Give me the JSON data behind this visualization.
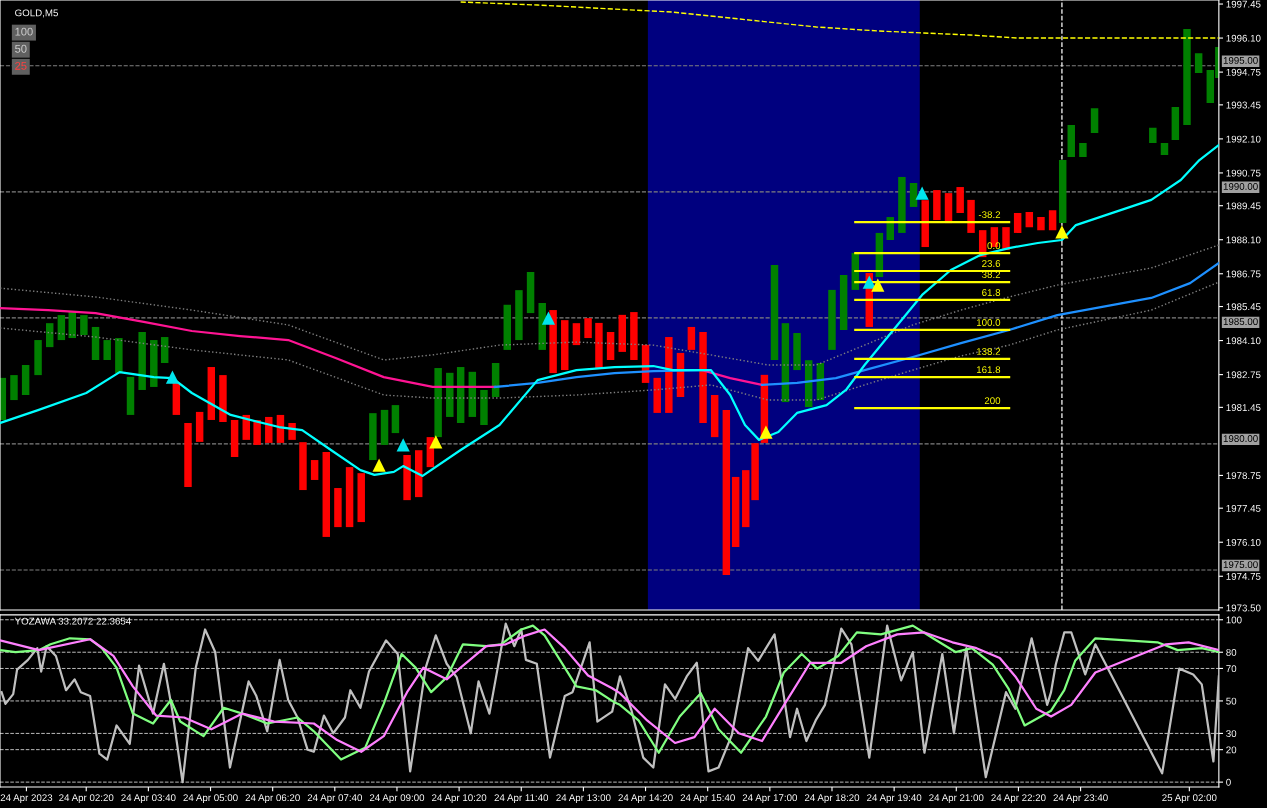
{
  "chart_data": [
    {
      "type": "bar",
      "title": "GOLD,M5",
      "annotations": [
        "100",
        "50",
        "25",
        {
          "text": "-38.2",
          "x": "2023-04-24T21:57",
          "y": 1988.8
        },
        {
          "text": "0.0",
          "x": "2023-04-24T21:57",
          "y": 1987.57
        },
        {
          "text": "23.6",
          "x": "2023-04-24T21:57",
          "y": 1986.86
        },
        {
          "text": "38.2",
          "x": "2023-04-24T21:57",
          "y": 1986.42
        },
        {
          "text": "61.8",
          "x": "2023-04-24T21:57",
          "y": 1985.71
        },
        {
          "text": "100.0",
          "x": "2023-04-24T21:57",
          "y": 1984.52
        },
        {
          "text": "138.2",
          "x": "2023-04-24T21:57",
          "y": 1983.37
        },
        {
          "text": "161.8",
          "x": "2023-04-24T21:57",
          "y": 1982.65
        },
        {
          "text": "200",
          "x": "2023-04-24T21:57",
          "y": 1981.42
        }
      ],
      "xlim": [
        "2023-04-24T00:29",
        "2023-04-25T02:38"
      ],
      "ylim": [
        1973.41,
        1997.61
      ],
      "yticks": [
        {
          "value": 1997.45,
          "label": "1997.45"
        },
        {
          "value": 1996.1,
          "label": "1996.10"
        },
        {
          "value": 1994.75,
          "label": "1994.75"
        },
        {
          "value": 1993.45,
          "label": "1993.45"
        },
        {
          "value": 1992.1,
          "label": "1992.10"
        },
        {
          "value": 1990.75,
          "label": "1990.75"
        },
        {
          "value": 1989.45,
          "label": "1989.45"
        },
        {
          "value": 1988.1,
          "label": "1988.10"
        },
        {
          "value": 1986.75,
          "label": "1986.75"
        },
        {
          "value": 1985.45,
          "label": "1985.45"
        },
        {
          "value": 1984.1,
          "label": "1984.10"
        },
        {
          "value": 1982.75,
          "label": "1982.75"
        },
        {
          "value": 1981.45,
          "label": "1981.45"
        },
        {
          "value": 1978.75,
          "label": "1978.75"
        },
        {
          "value": 1977.45,
          "label": "1977.45"
        },
        {
          "value": 1976.1,
          "label": "1976.10"
        },
        {
          "value": 1974.75,
          "label": "1974.75"
        },
        {
          "value": 1973.5,
          "label": "1973.50"
        }
      ],
      "tick_labels": "y",
      "ref_lines": [
        {
          "axis": "y",
          "value": 1995,
          "label": "1995.00",
          "color": "#808080",
          "line_style": "dashed"
        },
        {
          "axis": "y",
          "value": 1990,
          "label": "1990.00",
          "color": "#808080",
          "line_style": "dashed"
        },
        {
          "axis": "y",
          "value": 1985,
          "label": "1985.00",
          "color": "#808080",
          "line_style": "dashed"
        },
        {
          "axis": "y",
          "value": 1980,
          "label": "1980.00",
          "color": "#808080",
          "line_style": "dashed"
        },
        {
          "axis": "y",
          "value": 1975,
          "label": "1975.00",
          "color": "#808080",
          "line_style": "dashed"
        },
        {
          "axis": "x",
          "value": "2023-04-24T23:16",
          "color": "#ffffff",
          "line_style": "dashed"
        }
      ],
      "bands": [
        {
          "axis": "x",
          "from": "2023-04-24T14:23",
          "to": "2023-04-24T20:13",
          "color": "#00007f"
        }
      ],
      "series": [
        {
          "type": "bar",
          "x": [
            "2023-04-24T00:32",
            "2023-04-24T00:47",
            "2023-04-24T01:02",
            "2023-04-24T01:18",
            "2023-04-24T01:33",
            "2023-04-24T01:48",
            "2023-04-24T02:02",
            "2023-04-24T02:17",
            "2023-04-24T02:32",
            "2023-04-24T02:47",
            "2023-04-24T03:02",
            "2023-04-24T03:17",
            "2023-04-24T03:32",
            "2023-04-24T03:47",
            "2023-04-24T04:01",
            "2023-04-24T04:16",
            "2023-04-24T04:31",
            "2023-04-24T04:46",
            "2023-04-24T05:01",
            "2023-04-24T05:16",
            "2023-04-24T05:31",
            "2023-04-24T05:46",
            "2023-04-24T06:00",
            "2023-04-24T06:15",
            "2023-04-24T06:30",
            "2023-04-24T06:45",
            "2023-04-24T06:59",
            "2023-04-24T07:14",
            "2023-04-24T07:29",
            "2023-04-24T07:44",
            "2023-04-24T07:59",
            "2023-04-24T08:14",
            "2023-04-24T08:29",
            "2023-04-24T08:44",
            "2023-04-24T08:58",
            "2023-04-24T09:13",
            "2023-04-24T09:28",
            "2023-04-24T09:43",
            "2023-04-24T09:53",
            "2023-04-24T10:08",
            "2023-04-24T10:22",
            "2023-04-24T10:37",
            "2023-04-24T10:52",
            "2023-04-24T11:07",
            "2023-04-24T11:22",
            "2023-04-24T11:37",
            "2023-04-24T11:52",
            "2023-04-24T12:07",
            "2023-04-24T12:21",
            "2023-04-24T12:36",
            "2023-04-24T12:51",
            "2023-04-24T13:06",
            "2023-04-24T13:20",
            "2023-04-24T13:35",
            "2023-04-24T13:50",
            "2023-04-24T14:05",
            "2023-04-24T14:20",
            "2023-04-24T14:35",
            "2023-04-24T14:50",
            "2023-04-24T15:05",
            "2023-04-24T15:19",
            "2023-04-24T15:34",
            "2023-04-24T15:49",
            "2023-04-24T16:04",
            "2023-04-24T16:16",
            "2023-04-24T16:29",
            "2023-04-24T16:41",
            "2023-04-24T16:53",
            "2023-04-24T17:06",
            "2023-04-24T17:20",
            "2023-04-24T17:35",
            "2023-04-24T17:50",
            "2023-04-24T18:05",
            "2023-04-24T18:20",
            "2023-04-24T18:35",
            "2023-04-24T18:50",
            "2023-04-24T19:08",
            "2023-04-24T19:21",
            "2023-04-24T19:35",
            "2023-04-24T19:50",
            "2023-04-24T20:05",
            "2023-04-24T20:20",
            "2023-04-24T20:35",
            "2023-04-24T20:50",
            "2023-04-24T21:05",
            "2023-04-24T21:19",
            "2023-04-24T21:34",
            "2023-04-24T21:49",
            "2023-04-24T22:04",
            "2023-04-24T22:19",
            "2023-04-24T22:34",
            "2023-04-24T22:49",
            "2023-04-24T23:04",
            "2023-04-24T23:17",
            "2023-04-24T23:28",
            "2023-04-24T23:43",
            "2023-04-24T23:58",
            "2023-04-25T01:13",
            "2023-04-25T01:28",
            "2023-04-25T01:42",
            "2023-04-25T01:57",
            "2023-04-25T02:12",
            "2023-04-25T02:27",
            "2023-04-25T02:38"
          ],
          "base": [
            1980.95,
            1981.74,
            1981.94,
            1982.73,
            1983.84,
            1984.12,
            1984.2,
            1984.32,
            1983.33,
            1983.33,
            1982.81,
            1981.15,
            1982.14,
            1982.26,
            1983.21,
            1981.15,
            1978.29,
            1980.08,
            1980.95,
            1980.87,
            1979.48,
            1980.16,
            1979.96,
            1980.04,
            1980.04,
            1980.16,
            1978.17,
            1978.57,
            1976.31,
            1976.7,
            1976.7,
            1976.9,
            1979.36,
            1979.96,
            1980.43,
            1977.77,
            1977.89,
            1979.08,
            1980.27,
            1981.07,
            1980.83,
            1981.07,
            1980.75,
            1981.86,
            1983.73,
            1984.12,
            1985.19,
            1983.73,
            1982.81,
            1982.93,
            1983.92,
            1984.2,
            1983.01,
            1983.33,
            1983.65,
            1983.33,
            1982.42,
            1981.23,
            1981.23,
            1981.86,
            1983.73,
            1980.83,
            1980.27,
            1974.8,
            1975.91,
            1976.7,
            1977.77,
            1980.04,
            1983.33,
            1981.66,
            1982.93,
            1981.46,
            1981.74,
            1983.73,
            1984.52,
            1986.11,
            1984.64,
            1986.62,
            1988.09,
            1988.37,
            1989.4,
            1987.81,
            1988.88,
            1988.76,
            1989.16,
            1988.37,
            1987.41,
            1987.81,
            1987.69,
            1988.37,
            1988.6,
            1988.48,
            1988.48,
            1988.76,
            1991.38,
            1991.38,
            1992.33,
            1991.94,
            1991.46,
            1992.06,
            1992.65,
            1994.71,
            1993.52,
            1994.52
          ],
          "values": [
            1.67,
            0.99,
            1.19,
            1.39,
            0.95,
            0.99,
            1.03,
            0.79,
            1.31,
            0.79,
            1.39,
            1.51,
            2.3,
            1.86,
            1.03,
            1.27,
            2.54,
            1.19,
            2.1,
            1.86,
            1.47,
            0.99,
            0.99,
            1.03,
            1.11,
            0.67,
            1.9,
            0.79,
            3.37,
            1.55,
            2.38,
            1.94,
            1.86,
            1.39,
            1.11,
            1.79,
            1.86,
            1.19,
            2.74,
            1.75,
            2.22,
            1.79,
            1.39,
            1.35,
            1.79,
            1.98,
            1.63,
            1.86,
            2.5,
            1.98,
            0.87,
            0.79,
            1.79,
            1.11,
            1.47,
            1.9,
            1.51,
            1.39,
            3.01,
            1.75,
            0.91,
            3.61,
            1.67,
            6.55,
            2.78,
            2.26,
            2.26,
            2.7,
            3.77,
            3.13,
            1.47,
            1.86,
            1.47,
            2.38,
            2.18,
            1.47,
            2.14,
            1.75,
            0.91,
            2.22,
            0.95,
            1.86,
            1.19,
            1.19,
            1.03,
            1.31,
            1.07,
            0.79,
            0.91,
            0.79,
            0.6,
            0.52,
            0.79,
            2.5,
            1.27,
            0.56,
            0.99,
            0.6,
            0.48,
            1.31,
            3.81,
            0.79,
            1.31,
            1.23
          ],
          "colors": [
            "#008000",
            "#008000",
            "#008000",
            "#008000",
            "#008000",
            "#008000",
            "#008000",
            "#008000",
            "#008000",
            "#008000",
            "#008000",
            "#008000",
            "#008000",
            "#008000",
            "#008000",
            "#ff0000",
            "#ff0000",
            "#ff0000",
            "#ff0000",
            "#ff0000",
            "#ff0000",
            "#ff0000",
            "#ff0000",
            "#ff0000",
            "#ff0000",
            "#ff0000",
            "#ff0000",
            "#ff0000",
            "#ff0000",
            "#ff0000",
            "#ff0000",
            "#ff0000",
            "#008000",
            "#008000",
            "#008000",
            "#ff0000",
            "#ff0000",
            "#ff0000",
            "#008000",
            "#008000",
            "#008000",
            "#008000",
            "#008000",
            "#008000",
            "#008000",
            "#008000",
            "#008000",
            "#008000",
            "#ff0000",
            "#ff0000",
            "#ff0000",
            "#ff0000",
            "#ff0000",
            "#ff0000",
            "#ff0000",
            "#ff0000",
            "#ff0000",
            "#ff0000",
            "#ff0000",
            "#ff0000",
            "#ff0000",
            "#ff0000",
            "#ff0000",
            "#ff0000",
            "#ff0000",
            "#ff0000",
            "#ff0000",
            "#ff0000",
            "#008000",
            "#008000",
            "#008000",
            "#008000",
            "#008000",
            "#008000",
            "#008000",
            "#008000",
            "#ff0000",
            "#008000",
            "#008000",
            "#008000",
            "#008000",
            "#ff0000",
            "#ff0000",
            "#ff0000",
            "#ff0000",
            "#ff0000",
            "#ff0000",
            "#ff0000",
            "#ff0000",
            "#ff0000",
            "#ff0000",
            "#ff0000",
            "#ff0000",
            "#008000",
            "#008000",
            "#008000",
            "#008000",
            "#008000",
            "#008000",
            "#008000",
            "#008000",
            "#008000",
            "#008000",
            "#008000"
          ]
        },
        {
          "type": "line",
          "color": "#808080",
          "line_style": "dotted",
          "x": [
            "2023-04-24T00:29",
            "2023-04-24T02:32",
            "2023-04-24T04:36",
            "2023-04-24T06:40",
            "2023-04-24T08:43",
            "2023-04-24T09:46",
            "2023-04-24T11:12",
            "2023-04-24T12:51",
            "2023-04-24T14:30",
            "2023-04-24T15:44",
            "2023-04-24T16:58",
            "2023-04-24T18:00",
            "2023-04-24T19:02",
            "2023-04-24T20:04",
            "2023-04-24T21:06",
            "2023-04-24T22:08",
            "2023-04-24T23:10",
            "2023-04-25T01:11",
            "2023-04-25T02:38"
          ],
          "values": [
            1986.18,
            1985.83,
            1985.31,
            1984.72,
            1983.33,
            1983.53,
            1983.92,
            1984.04,
            1983.92,
            1983.53,
            1983.13,
            1983.13,
            1983.92,
            1984.72,
            1985.31,
            1985.83,
            1986.3,
            1986.98,
            1987.89
          ]
        },
        {
          "type": "line",
          "color": "#808080",
          "line_style": "dotted",
          "x": [
            "2023-04-24T00:29",
            "2023-04-24T02:32",
            "2023-04-24T04:36",
            "2023-04-24T06:40",
            "2023-04-24T08:43",
            "2023-04-24T09:46",
            "2023-04-24T11:12",
            "2023-04-24T12:51",
            "2023-04-24T14:30",
            "2023-04-24T15:44",
            "2023-04-24T16:58",
            "2023-04-24T18:00",
            "2023-04-24T19:02",
            "2023-04-24T20:04",
            "2023-04-24T21:06",
            "2023-04-24T22:08",
            "2023-04-24T23:10",
            "2023-04-25T01:11",
            "2023-04-25T02:38"
          ],
          "values": [
            1984.6,
            1984.24,
            1983.73,
            1983.33,
            1981.94,
            1981.82,
            1981.82,
            1981.94,
            1982.14,
            1982.34,
            1981.74,
            1981.74,
            1982.34,
            1982.93,
            1983.49,
            1983.92,
            1984.52,
            1985.31,
            1986.42
          ]
        },
        {
          "type": "line",
          "color": "#ffff00",
          "line_style": "dashed",
          "x": [
            "2023-04-24T10:22",
            "2023-04-24T12:01",
            "2023-04-24T14:55",
            "2023-04-24T18:00",
            "2023-04-24T19:20",
            "2023-04-24T21:18",
            "2023-04-24T22:20",
            "2023-04-25T02:38"
          ],
          "values": [
            1997.53,
            1997.41,
            1997.13,
            1996.54,
            1996.38,
            1996.22,
            1996.1,
            1996.1
          ]
        },
        {
          "type": "line",
          "color": "#ff1493",
          "x": [
            "2023-04-24T00:29",
            "2023-04-24T01:31",
            "2023-04-24T02:32",
            "2023-04-24T03:34",
            "2023-04-24T04:36",
            "2023-04-24T05:38",
            "2023-04-24T06:40",
            "2023-04-24T07:41",
            "2023-04-24T08:43",
            "2023-04-24T09:46",
            "2023-04-24T11:06",
            "2023-04-24T13:00",
            "2023-04-24T15:32",
            "2023-04-24T16:09",
            "2023-04-24T16:50"
          ],
          "values": [
            1985.39,
            1985.31,
            1985.19,
            1984.84,
            1984.48,
            1984.28,
            1984.12,
            1983.41,
            1982.65,
            1982.26,
            1982.26,
            null,
            1982.93,
            1982.61,
            1982.34
          ]
        },
        {
          "type": "line",
          "color": "#1e90ff",
          "x": [
            "2023-04-24T11:06",
            "2023-04-24T12:01",
            "2023-04-24T12:51",
            "2023-04-24T13:40",
            "2023-04-24T14:30",
            "2023-04-24T15:32",
            "2023-04-24T16:09",
            "2023-04-24T16:50",
            "2023-04-24T17:35",
            "2023-04-24T18:25",
            "2023-04-24T19:02",
            "2023-04-24T20:04",
            "2023-04-24T21:06",
            "2023-04-24T22:08",
            "2023-04-24T23:10",
            "2023-04-25T01:11",
            "2023-04-25T02:01",
            "2023-04-25T02:38"
          ],
          "values": [
            1982.26,
            1982.42,
            1982.65,
            1982.81,
            1982.89,
            1982.93,
            null,
            1982.34,
            1982.42,
            1982.61,
            1982.93,
            1983.45,
            1984.0,
            1984.52,
            1985.11,
            1985.79,
            1986.38,
            1987.18
          ]
        },
        {
          "type": "line",
          "color": "#00ffff",
          "x": [
            "2023-04-24T00:29",
            "2023-04-24T01:18",
            "2023-04-24T02:20",
            "2023-04-24T03:03",
            "2023-04-24T03:47",
            "2023-04-24T04:11",
            "2023-04-24T04:36",
            "2023-04-24T05:26",
            "2023-04-24T06:28",
            "2023-04-24T06:58",
            "2023-04-24T07:35",
            "2023-04-24T08:13",
            "2023-04-24T08:31",
            "2023-04-24T08:56",
            "2023-04-24T09:08",
            "2023-04-24T09:33",
            "2023-04-24T10:22",
            "2023-04-24T11:12",
            "2023-04-24T12:01",
            "2023-04-24T12:51",
            "2023-04-24T13:40",
            "2023-04-24T14:30",
            "2023-04-24T14:55",
            "2023-04-24T15:44",
            "2023-04-24T16:09",
            "2023-04-24T16:28",
            "2023-04-24T16:46",
            "2023-04-24T17:11",
            "2023-04-24T17:35",
            "2023-04-24T18:13",
            "2023-04-24T18:38",
            "2023-04-24T19:02",
            "2023-04-24T19:39",
            "2023-04-24T20:16",
            "2023-04-24T20:53",
            "2023-04-24T21:31",
            "2023-04-24T22:08",
            "2023-04-24T22:45",
            "2023-04-24T23:16",
            "2023-04-24T23:34",
            "2023-04-25T01:11",
            "2023-04-25T01:49",
            "2023-04-25T02:13",
            "2023-04-25T02:38"
          ],
          "values": [
            1980.83,
            1981.34,
            1982.02,
            1982.85,
            1982.65,
            1982.61,
            1982.02,
            1981.15,
            1980.67,
            1980.55,
            1979.76,
            1978.96,
            1978.77,
            1978.89,
            1979.12,
            1978.73,
            1979.76,
            1980.75,
            1982.53,
            1982.93,
            1983.05,
            1983.09,
            1982.93,
            1982.93,
            1981.94,
            1980.75,
            1980.16,
            1980.47,
            1981.23,
            1981.54,
            1982.14,
            1983.13,
            1984.52,
            1985.91,
            1986.9,
            1987.49,
            1987.77,
            1987.97,
            1988.09,
            1988.68,
            1989.68,
            1990.47,
            1991.26,
            1991.86
          ]
        },
        {
          "type": "line",
          "color": "#ffff00",
          "x": [
            "2023-04-24T18:50",
            "2023-04-24T22:08"
          ],
          "values": [
            1988.8,
            1988.8
          ]
        },
        {
          "type": "line",
          "color": "#ffff00",
          "x": [
            "2023-04-24T18:50",
            "2023-04-24T22:08"
          ],
          "values": [
            1987.57,
            1987.57
          ]
        },
        {
          "type": "line",
          "color": "#ffff00",
          "x": [
            "2023-04-24T18:50",
            "2023-04-24T22:08"
          ],
          "values": [
            1986.86,
            1986.86
          ]
        },
        {
          "type": "line",
          "color": "#ffff00",
          "x": [
            "2023-04-24T18:50",
            "2023-04-24T22:08"
          ],
          "values": [
            1986.42,
            1986.42
          ]
        },
        {
          "type": "line",
          "color": "#ffff00",
          "x": [
            "2023-04-24T18:50",
            "2023-04-24T22:08"
          ],
          "values": [
            1985.71,
            1985.71
          ]
        },
        {
          "type": "line",
          "color": "#ffff00",
          "x": [
            "2023-04-24T18:50",
            "2023-04-24T22:08"
          ],
          "values": [
            1984.52,
            1984.52
          ]
        },
        {
          "type": "line",
          "color": "#ffff00",
          "x": [
            "2023-04-24T18:50",
            "2023-04-24T22:08"
          ],
          "values": [
            1983.37,
            1983.37
          ]
        },
        {
          "type": "line",
          "color": "#ffff00",
          "x": [
            "2023-04-24T18:50",
            "2023-04-24T22:08"
          ],
          "values": [
            1982.65,
            1982.65
          ]
        },
        {
          "type": "line",
          "color": "#ffff00",
          "x": [
            "2023-04-24T18:50",
            "2023-04-24T22:08"
          ],
          "values": [
            1981.42,
            1981.42
          ]
        },
        {
          "type": "scatter",
          "color": "#00e5ee",
          "marker": "triangle",
          "x": [
            "2023-04-24T04:11",
            "2023-04-24T09:08",
            "2023-04-24T12:15",
            "2023-04-24T19:08",
            "2023-04-24T20:16"
          ],
          "values": [
            1982.65,
            1979.96,
            1984.99,
            1986.42,
            1989.95
          ]
        },
        {
          "type": "scatter",
          "color": "#ffff00",
          "marker": "triangle",
          "x": [
            "2023-04-24T08:37",
            "2023-04-24T09:50",
            "2023-04-24T16:55",
            "2023-04-24T19:19",
            "2023-04-24T23:16"
          ],
          "values": [
            1979.16,
            1980.08,
            1980.47,
            1986.3,
            1988.41
          ]
        }
      ]
    },
    {
      "type": "line",
      "title": "YOZAWA 33.2072 22.3654",
      "xlim": [
        "2023-04-24T00:29",
        "2023-04-25T02:38"
      ],
      "ylim": [
        -3,
        103
      ],
      "xticks": [
        {
          "value": "2023-04-24T01:03",
          "label": "24 Apr 2023"
        },
        {
          "value": "2023-04-24T02:20",
          "label": "24 Apr 02:20"
        },
        {
          "value": "2023-04-24T03:40",
          "label": "24 Apr 03:40"
        },
        {
          "value": "2023-04-24T05:00",
          "label": "24 Apr 05:00"
        },
        {
          "value": "2023-04-24T06:20",
          "label": "24 Apr 06:20"
        },
        {
          "value": "2023-04-24T07:40",
          "label": "24 Apr 07:40"
        },
        {
          "value": "2023-04-24T09:00",
          "label": "24 Apr 09:00"
        },
        {
          "value": "2023-04-24T10:20",
          "label": "24 Apr 10:20"
        },
        {
          "value": "2023-04-24T11:40",
          "label": "24 Apr 11:40"
        },
        {
          "value": "2023-04-24T13:00",
          "label": "24 Apr 13:00"
        },
        {
          "value": "2023-04-24T14:20",
          "label": "24 Apr 14:20"
        },
        {
          "value": "2023-04-24T15:40",
          "label": "24 Apr 15:40"
        },
        {
          "value": "2023-04-24T17:00",
          "label": "24 Apr 17:00"
        },
        {
          "value": "2023-04-24T18:20",
          "label": "24 Apr 18:20"
        },
        {
          "value": "2023-04-24T19:40",
          "label": "24 Apr 19:40"
        },
        {
          "value": "2023-04-24T21:00",
          "label": "24 Apr 21:00"
        },
        {
          "value": "2023-04-24T22:20",
          "label": "24 Apr 22:20"
        },
        {
          "value": "2023-04-24T23:40",
          "label": "24 Apr 23:40"
        },
        {
          "value": "2023-04-25T02:00",
          "label": "25 Apr 02:00"
        }
      ],
      "yticks": [
        100,
        80,
        70,
        50,
        30,
        20,
        0
      ],
      "grid": "y",
      "series": [
        {
          "color": "#c0c0c0",
          "x": [
            "2023-04-24T00:31",
            "2023-04-24T00:36",
            "2023-04-24T00:46",
            "2023-04-24T00:51",
            "2023-04-24T01:05",
            "2023-04-24T01:17",
            "2023-04-24T01:22",
            "2023-04-24T01:29",
            "2023-04-24T01:41",
            "2023-04-24T01:54",
            "2023-04-24T02:05",
            "2023-04-24T02:13",
            "2023-04-24T02:25",
            "2023-04-24T02:37",
            "2023-04-24T02:47",
            "2023-04-24T02:59",
            "2023-04-24T03:16",
            "2023-04-24T03:28",
            "2023-04-24T03:46",
            "2023-04-24T04:00",
            "2023-04-24T04:11",
            "2023-04-24T04:24",
            "2023-04-24T04:41",
            "2023-04-24T04:53",
            "2023-04-24T05:06",
            "2023-04-24T05:25",
            "2023-04-24T05:49",
            "2023-04-24T05:59",
            "2023-04-24T06:13",
            "2023-04-24T06:29",
            "2023-04-24T06:40",
            "2023-04-24T06:52",
            "2023-04-24T07:05",
            "2023-04-24T07:13",
            "2023-04-24T07:26",
            "2023-04-24T07:38",
            "2023-04-24T07:53",
            "2023-04-24T08:00",
            "2023-04-24T08:13",
            "2023-04-24T08:24",
            "2023-04-24T08:46",
            "2023-04-24T09:01",
            "2023-04-24T09:17",
            "2023-04-24T09:37",
            "2023-04-24T09:50",
            "2023-04-24T10:04",
            "2023-04-24T10:17",
            "2023-04-24T10:35",
            "2023-04-24T10:45",
            "2023-04-24T10:59",
            "2023-04-24T11:20",
            "2023-04-24T11:31",
            "2023-04-24T11:40",
            "2023-04-24T11:46",
            "2023-04-24T12:00",
            "2023-04-24T12:17",
            "2023-04-24T12:36",
            "2023-04-24T12:46",
            "2023-04-24T13:08",
            "2023-04-24T13:18",
            "2023-04-24T13:37",
            "2023-04-24T13:47",
            "2023-04-24T14:02",
            "2023-04-24T14:17",
            "2023-04-24T14:30",
            "2023-04-24T14:45",
            "2023-04-24T14:58",
            "2023-04-24T15:13",
            "2023-04-24T15:26",
            "2023-04-24T15:41",
            "2023-04-24T15:54",
            "2023-04-24T16:11",
            "2023-04-24T16:32",
            "2023-04-24T16:45",
            "2023-04-24T17:06",
            "2023-04-24T17:26",
            "2023-04-24T17:35",
            "2023-04-24T17:47",
            "2023-04-24T17:59",
            "2023-04-24T18:11",
            "2023-04-24T18:32",
            "2023-04-24T18:45",
            "2023-04-24T19:08",
            "2023-04-24T19:31",
            "2023-04-24T19:49",
            "2023-04-24T20:04",
            "2023-04-24T20:19",
            "2023-04-24T20:42",
            "2023-04-24T20:57",
            "2023-04-24T21:13",
            "2023-04-24T21:38",
            "2023-04-24T22:04",
            "2023-04-24T22:16",
            "2023-04-24T22:37",
            "2023-04-24T22:57",
            "2023-04-24T23:02",
            "2023-04-24T23:08",
            "2023-04-24T23:19",
            "2023-04-24T23:28",
            "2023-04-24T23:46",
            "2023-04-24T23:59",
            "2023-04-25T01:25",
            "2023-04-25T01:47",
            "2023-04-25T02:05",
            "2023-04-25T02:16",
            "2023-04-25T02:31",
            "2023-04-25T02:38"
          ],
          "values": [
            55.4,
            48.2,
            54.2,
            69.3,
            75.3,
            82.5,
            68.1,
            83.7,
            77.7,
            56.6,
            63.3,
            55.4,
            53.0,
            17.5,
            13.9,
            34.9,
            23.5,
            71.7,
            42.2,
            72.9,
            43.4,
            0,
            70.5,
            94.0,
            80.1,
            9.0,
            62.0,
            53.0,
            31.3,
            75.3,
            50.6,
            39.8,
            19.9,
            18.7,
            41.0,
            30.1,
            39.8,
            56.6,
            45.8,
            68.1,
            87.3,
            78.9,
            6.6,
            70.5,
            90.4,
            72.9,
            64.5,
            30.1,
            62.0,
            42.2,
            97.6,
            83.7,
            94.0,
            75.3,
            72.9,
            15.1,
            53.0,
            55.4,
            86.1,
            37.3,
            43.4,
            65.1,
            44.0,
            15.1,
            9.0,
            60.2,
            51.2,
            65.1,
            73.5,
            6.6,
            9.0,
            28.9,
            82.5,
            74.7,
            91.0,
            27.7,
            45.2,
            25.3,
            38.0,
            47.6,
            94.6,
            84.9,
            15.1,
            96.4,
            62.7,
            80.1,
            18.1,
            78.9,
            30.1,
            82.5,
            3.0,
            55.4,
            45.2,
            88.6,
            47.6,
            55.4,
            72.3,
            92.2,
            92.2,
            66.3,
            84.9,
            5.4,
            69.9,
            66.3,
            60.2,
            12.7,
            65.1
          ]
        },
        {
          "color": "#80ff80",
          "x": [
            "2023-04-24T00:29",
            "2023-04-24T00:49",
            "2023-04-24T01:19",
            "2023-04-24T01:34",
            "2023-04-24T01:59",
            "2023-04-24T02:25",
            "2023-04-24T02:40",
            "2023-04-24T02:59",
            "2023-04-24T03:20",
            "2023-04-24T03:46",
            "2023-04-24T04:09",
            "2023-04-24T04:21",
            "2023-04-24T04:51",
            "2023-04-24T05:17",
            "2023-04-24T05:41",
            "2023-04-24T06:13",
            "2023-04-24T06:52",
            "2023-04-24T07:13",
            "2023-04-24T07:48",
            "2023-04-24T08:19",
            "2023-04-24T08:43",
            "2023-04-24T09:06",
            "2023-04-24T09:24",
            "2023-04-24T09:44",
            "2023-04-24T10:04",
            "2023-04-24T10:25",
            "2023-04-24T10:55",
            "2023-04-24T11:14",
            "2023-04-24T11:40",
            "2023-04-24T11:55",
            "2023-04-24T12:10",
            "2023-04-24T12:36",
            "2023-04-24T12:51",
            "2023-04-24T13:16",
            "2023-04-24T13:39",
            "2023-04-24T13:47",
            "2023-04-24T14:11",
            "2023-04-24T14:37",
            "2023-04-24T15:04",
            "2023-04-24T15:31",
            "2023-04-24T15:54",
            "2023-04-24T16:23",
            "2023-04-24T16:55",
            "2023-04-24T17:18",
            "2023-04-24T17:41",
            "2023-04-24T18:01",
            "2023-04-24T18:28",
            "2023-04-24T18:52",
            "2023-04-24T19:23",
            "2023-04-24T20:04",
            "2023-04-24T20:30",
            "2023-04-24T20:59",
            "2023-04-24T21:20",
            "2023-04-24T21:47",
            "2023-04-24T22:07",
            "2023-04-24T22:28",
            "2023-04-24T23:02",
            "2023-04-24T23:19",
            "2023-04-24T23:33",
            "2023-04-24T23:59",
            "2023-04-25T01:19",
            "2023-04-25T01:45",
            "2023-04-25T02:16",
            "2023-04-25T02:38"
          ],
          "values": [
            81.3,
            80.1,
            81.3,
            84.9,
            88.6,
            88.0,
            82.5,
            70.5,
            42.2,
            36.1,
            50.6,
            37.3,
            28.3,
            45.8,
            42.2,
            36.1,
            39.8,
            31.3,
            13.9,
            21.1,
            48.2,
            78.9,
            70.5,
            55.4,
            64.5,
            84.9,
            83.7,
            84.9,
            94.0,
            96.4,
            90.4,
            70.5,
            59.0,
            56.6,
            49.4,
            47.6,
            38.0,
            18.1,
            40.4,
            54.8,
            32.5,
            18.1,
            40.4,
            67.5,
            78.9,
            69.9,
            77.7,
            92.2,
            91.0,
            96.4,
            88.6,
            80.1,
            82.5,
            72.3,
            57.8,
            34.9,
            44.0,
            56.6,
            74.7,
            88.6,
            86.1,
            81.3,
            82.5,
            80.1
          ]
        },
        {
          "color": "#ff80ff",
          "x": [
            "2023-04-24T00:29",
            "2023-04-24T01:19",
            "2023-04-24T02:25",
            "2023-04-24T02:55",
            "2023-04-24T03:20",
            "2023-04-24T03:50",
            "2023-04-24T04:26",
            "2023-04-24T05:01",
            "2023-04-24T05:41",
            "2023-04-24T06:22",
            "2023-04-24T07:13",
            "2023-04-24T07:43",
            "2023-04-24T08:14",
            "2023-04-24T08:43",
            "2023-04-24T09:13",
            "2023-04-24T09:34",
            "2023-04-24T10:04",
            "2023-04-24T10:25",
            "2023-04-24T10:55",
            "2023-04-24T11:20",
            "2023-04-24T11:46",
            "2023-04-24T12:10",
            "2023-04-24T12:36",
            "2023-04-24T13:06",
            "2023-04-24T13:37",
            "2023-04-24T13:47",
            "2023-04-24T14:22",
            "2023-04-24T14:58",
            "2023-04-24T15:23",
            "2023-04-24T15:49",
            "2023-04-24T16:20",
            "2023-04-24T16:50",
            "2023-04-24T17:20",
            "2023-04-24T17:52",
            "2023-04-24T18:32",
            "2023-04-24T19:04",
            "2023-04-24T19:44",
            "2023-04-24T20:19",
            "2023-04-24T20:55",
            "2023-04-24T21:26",
            "2023-04-24T21:56",
            "2023-04-24T22:16",
            "2023-04-24T22:43",
            "2023-04-24T23:02",
            "2023-04-24T23:28",
            "2023-04-24T23:59",
            "2023-04-25T01:30",
            "2023-04-25T01:59",
            "2023-04-25T02:38"
          ],
          "values": [
            87.3,
            81.3,
            88.0,
            77.7,
            59.0,
            41.0,
            39.8,
            32.5,
            42.2,
            37.3,
            36.1,
            25.9,
            18.7,
            28.3,
            55.4,
            70.5,
            63.3,
            71.7,
            83.7,
            84.9,
            90.4,
            94.0,
            82.5,
            65.7,
            57.8,
            54.8,
            38.0,
            24.1,
            27.7,
            45.2,
            30.1,
            25.3,
            48.8,
            73.5,
            73.5,
            83.7,
            91.0,
            92.2,
            86.1,
            82.5,
            76.5,
            65.1,
            45.2,
            40.4,
            47.6,
            67.5,
            84.9,
            86.1,
            81.3
          ]
        }
      ]
    }
  ]
}
